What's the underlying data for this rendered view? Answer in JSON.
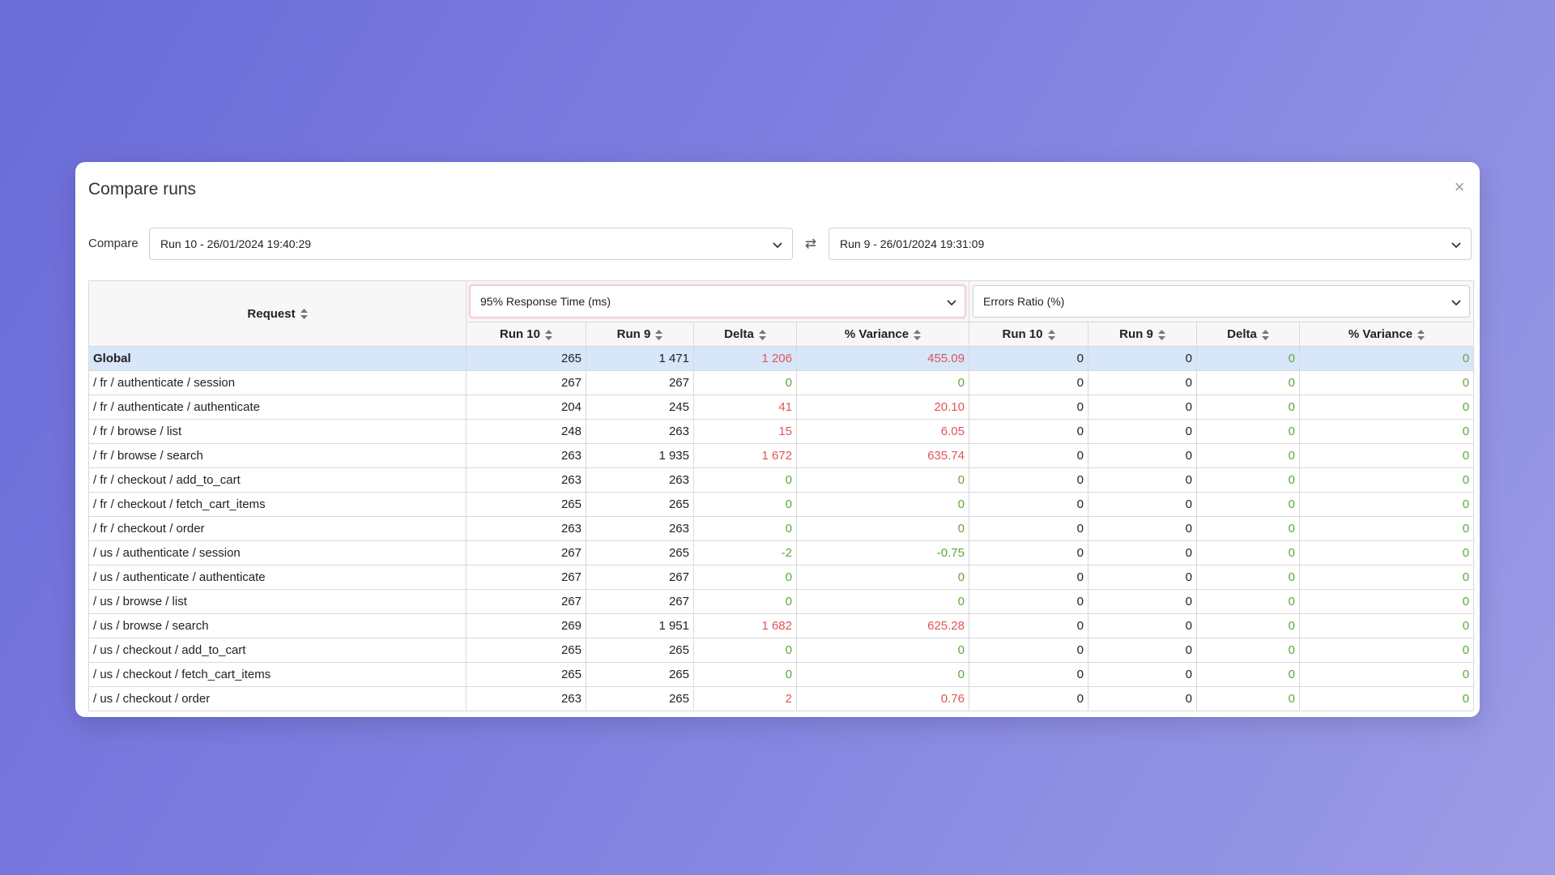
{
  "modal": {
    "title": "Compare runs",
    "close_icon": "close-icon"
  },
  "compare": {
    "label": "Compare",
    "run_a": "Run 10 - 26/01/2024 19:40:29",
    "run_b": "Run 9 - 26/01/2024 19:31:09",
    "swap_icon": "⇄"
  },
  "table": {
    "request_header": "Request",
    "metric_a": "95% Response Time (ms)",
    "metric_b": "Errors Ratio (%)",
    "sub_headers": [
      "Run 10",
      "Run 9",
      "Delta",
      "% Variance",
      "Run 10",
      "Run 9",
      "Delta",
      "% Variance"
    ],
    "rows": [
      {
        "req": "Global",
        "r10": "265",
        "r9": "1 471",
        "delta": "1 206",
        "var": "455.09",
        "e10": "0",
        "e9": "0",
        "edelta": "0",
        "evar": "0",
        "sign": "pos"
      },
      {
        "req": "/ fr / authenticate / session",
        "r10": "267",
        "r9": "267",
        "delta": "0",
        "var": "0",
        "e10": "0",
        "e9": "0",
        "edelta": "0",
        "evar": "0",
        "sign": "zero"
      },
      {
        "req": "/ fr / authenticate / authenticate",
        "r10": "204",
        "r9": "245",
        "delta": "41",
        "var": "20.10",
        "e10": "0",
        "e9": "0",
        "edelta": "0",
        "evar": "0",
        "sign": "pos"
      },
      {
        "req": "/ fr / browse / list",
        "r10": "248",
        "r9": "263",
        "delta": "15",
        "var": "6.05",
        "e10": "0",
        "e9": "0",
        "edelta": "0",
        "evar": "0",
        "sign": "pos"
      },
      {
        "req": "/ fr / browse / search",
        "r10": "263",
        "r9": "1 935",
        "delta": "1 672",
        "var": "635.74",
        "e10": "0",
        "e9": "0",
        "edelta": "0",
        "evar": "0",
        "sign": "pos"
      },
      {
        "req": "/ fr / checkout / add_to_cart",
        "r10": "263",
        "r9": "263",
        "delta": "0",
        "var": "0",
        "e10": "0",
        "e9": "0",
        "edelta": "0",
        "evar": "0",
        "sign": "zero"
      },
      {
        "req": "/ fr / checkout / fetch_cart_items",
        "r10": "265",
        "r9": "265",
        "delta": "0",
        "var": "0",
        "e10": "0",
        "e9": "0",
        "edelta": "0",
        "evar": "0",
        "sign": "zero"
      },
      {
        "req": "/ fr / checkout / order",
        "r10": "263",
        "r9": "263",
        "delta": "0",
        "var": "0",
        "e10": "0",
        "e9": "0",
        "edelta": "0",
        "evar": "0",
        "sign": "zero"
      },
      {
        "req": "/ us / authenticate / session",
        "r10": "267",
        "r9": "265",
        "delta": "-2",
        "var": "-0.75",
        "e10": "0",
        "e9": "0",
        "edelta": "0",
        "evar": "0",
        "sign": "neg"
      },
      {
        "req": "/ us / authenticate / authenticate",
        "r10": "267",
        "r9": "267",
        "delta": "0",
        "var": "0",
        "e10": "0",
        "e9": "0",
        "edelta": "0",
        "evar": "0",
        "sign": "zero"
      },
      {
        "req": "/ us / browse / list",
        "r10": "267",
        "r9": "267",
        "delta": "0",
        "var": "0",
        "e10": "0",
        "e9": "0",
        "edelta": "0",
        "evar": "0",
        "sign": "zero"
      },
      {
        "req": "/ us / browse / search",
        "r10": "269",
        "r9": "1 951",
        "delta": "1 682",
        "var": "625.28",
        "e10": "0",
        "e9": "0",
        "edelta": "0",
        "evar": "0",
        "sign": "pos"
      },
      {
        "req": "/ us / checkout / add_to_cart",
        "r10": "265",
        "r9": "265",
        "delta": "0",
        "var": "0",
        "e10": "0",
        "e9": "0",
        "edelta": "0",
        "evar": "0",
        "sign": "zero"
      },
      {
        "req": "/ us / checkout / fetch_cart_items",
        "r10": "265",
        "r9": "265",
        "delta": "0",
        "var": "0",
        "e10": "0",
        "e9": "0",
        "edelta": "0",
        "evar": "0",
        "sign": "zero"
      },
      {
        "req": "/ us / checkout / order",
        "r10": "263",
        "r9": "265",
        "delta": "2",
        "var": "0.76",
        "e10": "0",
        "e9": "0",
        "edelta": "0",
        "evar": "0",
        "sign": "pos"
      }
    ]
  },
  "colors": {
    "positive": "#e05555",
    "negative": "#5aa83c",
    "highlight_row": "#d7e6f8"
  }
}
